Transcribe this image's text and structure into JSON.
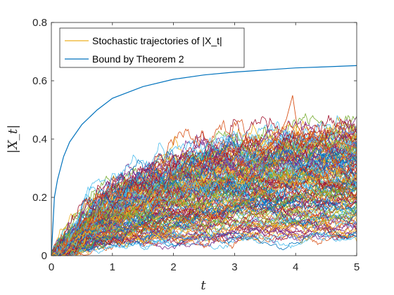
{
  "chart_data": {
    "type": "line",
    "xlabel": "t",
    "ylabel": "|X_t|",
    "xlim": [
      0,
      5
    ],
    "ylim": [
      0,
      0.8
    ],
    "xticks": [
      0,
      1,
      2,
      3,
      4,
      5
    ],
    "xtick_labels": [
      "0",
      "1",
      "2",
      "3",
      "4",
      "5"
    ],
    "yticks": [
      0,
      0.2,
      0.4,
      0.6,
      0.8
    ],
    "ytick_labels": [
      "0",
      "0.2",
      "0.4",
      "0.6",
      "0.8"
    ],
    "grid": false,
    "legend_position": "top-left",
    "series": [
      {
        "name": "Stochastic trajectories of |X_t|",
        "color": "#EDB120",
        "kind": "stochastic-ensemble",
        "typical_envelope": {
          "x": [
            0,
            0.5,
            1,
            1.5,
            2,
            2.5,
            3,
            3.5,
            4,
            4.5,
            5
          ],
          "y": [
            0,
            0.2,
            0.25,
            0.28,
            0.3,
            0.32,
            0.34,
            0.35,
            0.36,
            0.36,
            0.37
          ]
        },
        "max_peak": {
          "x": 3.95,
          "y": 0.55
        }
      },
      {
        "name": "Bound by Theorem 2",
        "color": "#0072BD",
        "x": [
          0,
          0.05,
          0.1,
          0.2,
          0.3,
          0.5,
          0.75,
          1.0,
          1.5,
          2.0,
          2.5,
          3.0,
          3.5,
          4.0,
          4.5,
          5.0
        ],
        "y": [
          0,
          0.2,
          0.26,
          0.34,
          0.39,
          0.45,
          0.5,
          0.54,
          0.58,
          0.605,
          0.62,
          0.63,
          0.637,
          0.644,
          0.648,
          0.652
        ]
      }
    ],
    "trajectory_colors": [
      "#0072BD",
      "#D95319",
      "#EDB120",
      "#7E2F8E",
      "#77AC30",
      "#4DBEEE",
      "#A2142F"
    ]
  }
}
